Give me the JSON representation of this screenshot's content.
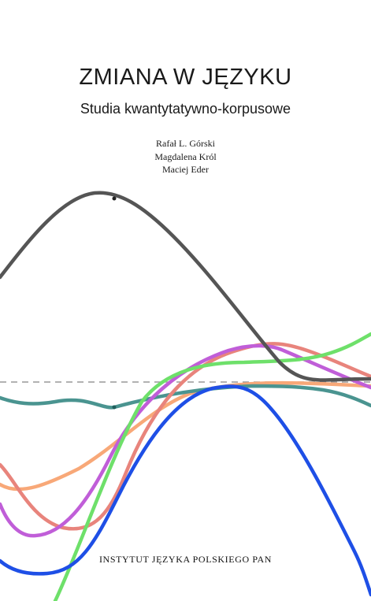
{
  "book": {
    "title": "ZMIANA W JĘZYKU",
    "subtitle": "Studia kwantytatywno-korpusowe",
    "authors": [
      "Rafał L. Górski",
      "Magdalena Król",
      "Maciej Eder"
    ],
    "publisher": "INSTYTUT JĘZYKA POLSKIEGO PAN"
  },
  "artwork": {
    "curve_colors": {
      "dark_gray": "#555555",
      "green": "#6ee06a",
      "salmon": "#e8847c",
      "purple": "#c05ed8",
      "orange": "#f8a878",
      "teal": "#4a9490",
      "blue": "#1e4fe6"
    },
    "baseline_color": "#999999"
  }
}
